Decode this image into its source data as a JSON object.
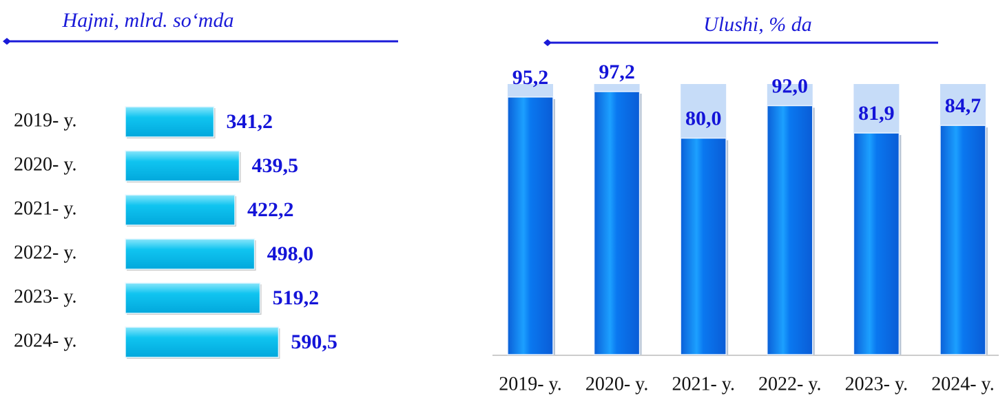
{
  "chart_data": [
    {
      "type": "barh",
      "title": "Hajmi, mlrd. so‘mda",
      "categories": [
        "2019- y.",
        "2020- y.",
        "2021- y.",
        "2022- y.",
        "2023- y.",
        "2024- y."
      ],
      "values": [
        341.2,
        439.5,
        422.2,
        498.0,
        519.2,
        590.5
      ],
      "value_labels": [
        "341,2",
        "439,5",
        "422,2",
        "498,0",
        "519,2",
        "590,5"
      ],
      "xlim": [
        0,
        600
      ],
      "color": "#00bfef"
    },
    {
      "type": "bar",
      "title": "Ulushi, % da",
      "categories": [
        "2019- y.",
        "2020- y.",
        "2021- y.",
        "2022- y.",
        "2023- y.",
        "2024- y."
      ],
      "values": [
        95.2,
        97.2,
        80.0,
        92.0,
        81.9,
        84.7
      ],
      "value_labels": [
        "95,2",
        "97,2",
        "80,0",
        "92,0",
        "81,9",
        "84,7"
      ],
      "ylim": [
        0,
        100
      ],
      "color": "#0a78f0"
    }
  ]
}
